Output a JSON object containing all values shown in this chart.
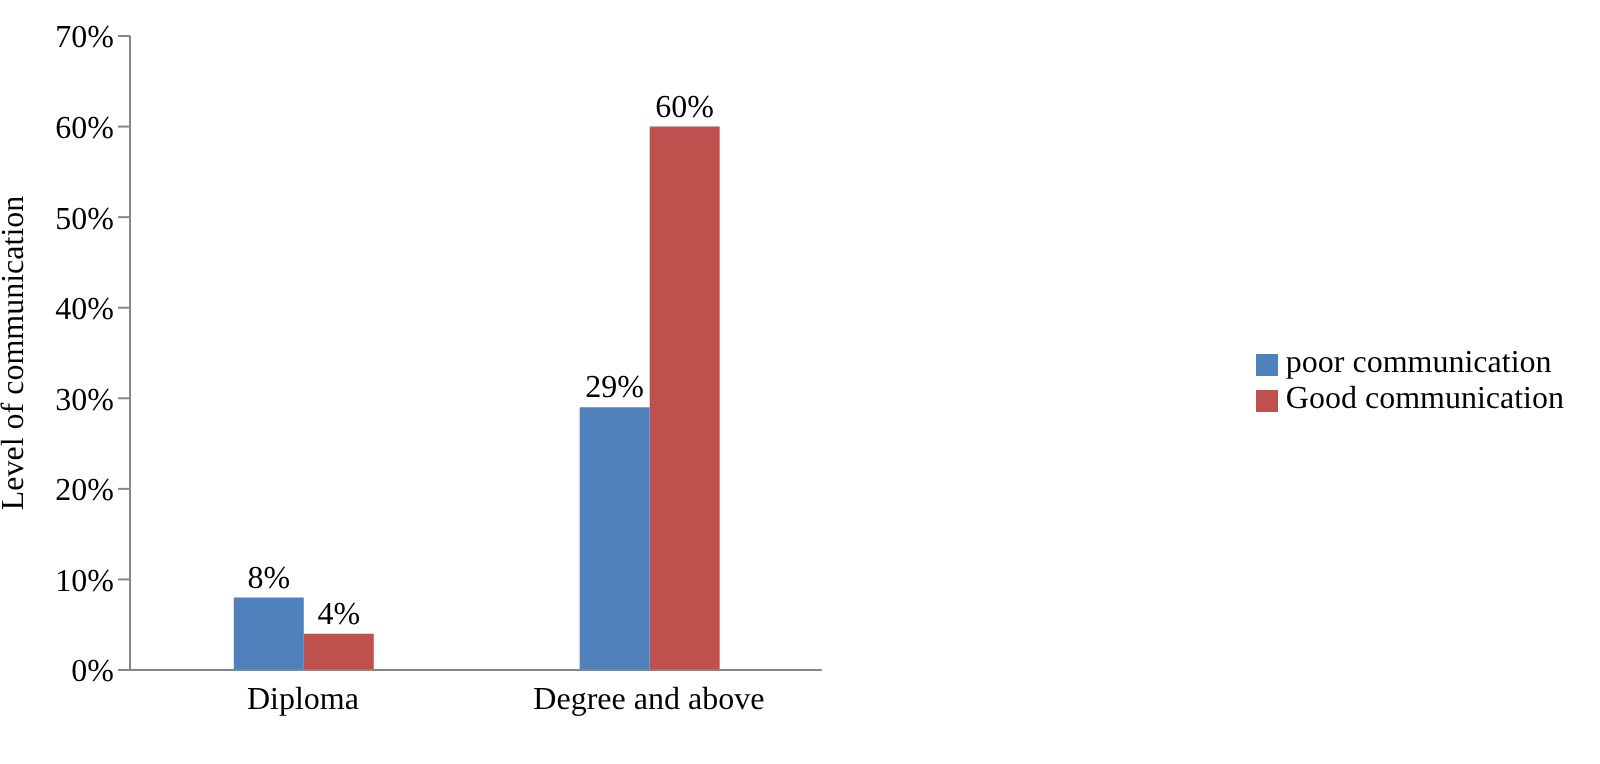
{
  "chart_data": {
    "type": "bar",
    "ylabel": "Level of communication",
    "categories": [
      "Diploma",
      "Degree and above"
    ],
    "series": [
      {
        "name": "poor communication",
        "color": "#4f81bd",
        "values": [
          8,
          29
        ],
        "value_labels": [
          "8%",
          "29%"
        ]
      },
      {
        "name": "Good communication",
        "color": "#c0504d",
        "values": [
          4,
          60
        ],
        "value_labels": [
          "4%",
          "60%"
        ]
      }
    ],
    "ylim": [
      0,
      70
    ],
    "yticks": [
      {
        "value": 0,
        "label": "0%"
      },
      {
        "value": 10,
        "label": "10%"
      },
      {
        "value": 20,
        "label": "20%"
      },
      {
        "value": 30,
        "label": "30%"
      },
      {
        "value": 40,
        "label": "40%"
      },
      {
        "value": 50,
        "label": "50%"
      },
      {
        "value": 60,
        "label": "60%"
      },
      {
        "value": 70,
        "label": "70%"
      }
    ],
    "legend": "right"
  }
}
